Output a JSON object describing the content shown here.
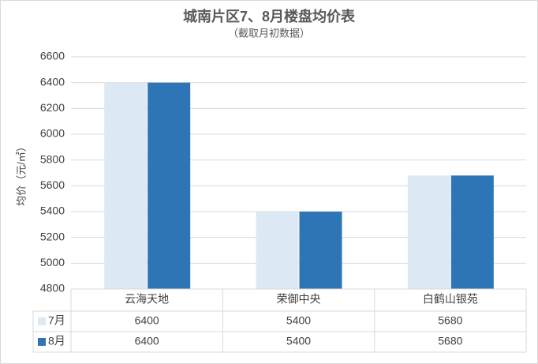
{
  "chart_data": {
    "type": "bar",
    "title": "城南片区7、8月楼盘均价表",
    "subtitle": "（截取月初数据）",
    "y_label": "均价（元/㎡）",
    "categories": [
      "云海天地",
      "荣御中央",
      "白鹤山银苑"
    ],
    "series": [
      {
        "name": "7月",
        "color": "#dce9f5",
        "values": [
          6400,
          5400,
          5680
        ]
      },
      {
        "name": "8月",
        "color": "#2e75b6",
        "values": [
          6400,
          5400,
          5680
        ]
      }
    ],
    "ylim": [
      4800,
      6600
    ],
    "yticks": [
      4800,
      5000,
      5200,
      5400,
      5600,
      5800,
      6000,
      6200,
      6400,
      6600
    ],
    "grid": true,
    "data_table": true
  }
}
